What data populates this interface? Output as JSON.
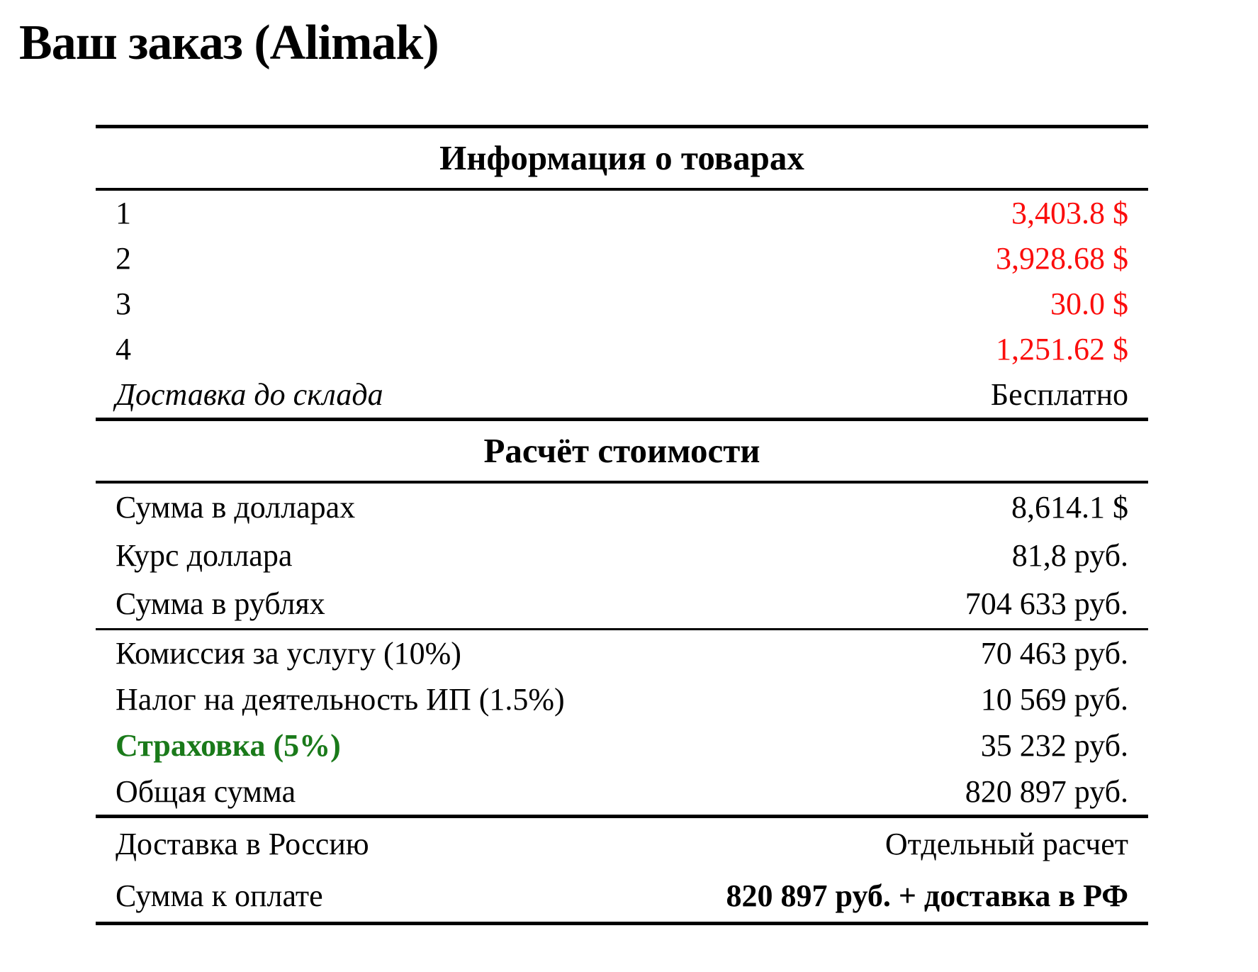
{
  "title": "Ваш заказ (Alimak)",
  "colors": {
    "price_red": "#fb0d0c",
    "insurance_green": "#1a7a1a",
    "text": "#000000",
    "rule": "#000000",
    "background": "#ffffff"
  },
  "products": {
    "header": "Информация о товарах",
    "rows": [
      {
        "label": "1",
        "value": "3,403.8 $"
      },
      {
        "label": "2",
        "value": "3,928.68 $"
      },
      {
        "label": "3",
        "value": "30.0 $"
      },
      {
        "label": "4",
        "value": "1,251.62 $"
      },
      {
        "label": "Доставка до склада",
        "value": "Бесплатно"
      }
    ]
  },
  "cost": {
    "header": "Расчёт стоимости",
    "totals": [
      {
        "label": "Сумма в долларах",
        "value": "8,614.1 $"
      },
      {
        "label": "Курс доллара",
        "value": "81,8 руб."
      },
      {
        "label": "Сумма в рублях",
        "value": "704 633 руб."
      }
    ],
    "fees": [
      {
        "label": "Комиссия за услугу (10%)",
        "value": "70 463 руб."
      },
      {
        "label": "Налог на деятельность ИП (1.5%)",
        "value": "10 569 руб."
      },
      {
        "label": "Страховка (5%)",
        "value": "35 232 руб."
      },
      {
        "label": "Общая сумма",
        "value": "820 897 руб."
      }
    ],
    "final": [
      {
        "label": "Доставка в Россию",
        "value": "Отдельный расчет"
      },
      {
        "label": "Сумма к оплате",
        "value": "820 897 руб. + доставка в РФ"
      }
    ]
  }
}
